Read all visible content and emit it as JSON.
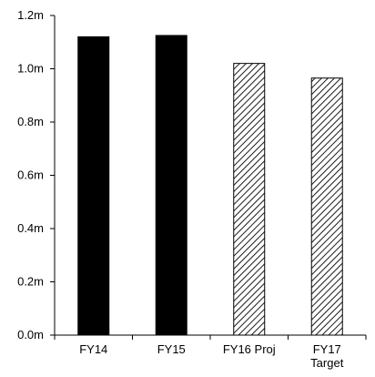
{
  "chart_data": {
    "type": "bar",
    "title": "",
    "xlabel": "",
    "ylabel": "",
    "categories": [
      {
        "line1": "FY14",
        "line2": ""
      },
      {
        "line1": "FY15",
        "line2": ""
      },
      {
        "line1": "FY16 Proj",
        "line2": ""
      },
      {
        "line1": "FY17",
        "line2": "Target"
      }
    ],
    "values": [
      1.12,
      1.125,
      1.02,
      0.965
    ],
    "styles": [
      "solid",
      "solid",
      "hatched",
      "hatched"
    ],
    "unit_suffix": "m",
    "ylim": [
      0,
      1.2
    ],
    "yticks": [
      "0.0m",
      "0.2m",
      "0.4m",
      "0.6m",
      "0.8m",
      "1.0m",
      "1.2m"
    ],
    "grid": false,
    "legend": "none",
    "colors": {
      "solid": "#000000",
      "hatch": "#000000",
      "background": "#ffffff",
      "axis": "#000000"
    }
  }
}
